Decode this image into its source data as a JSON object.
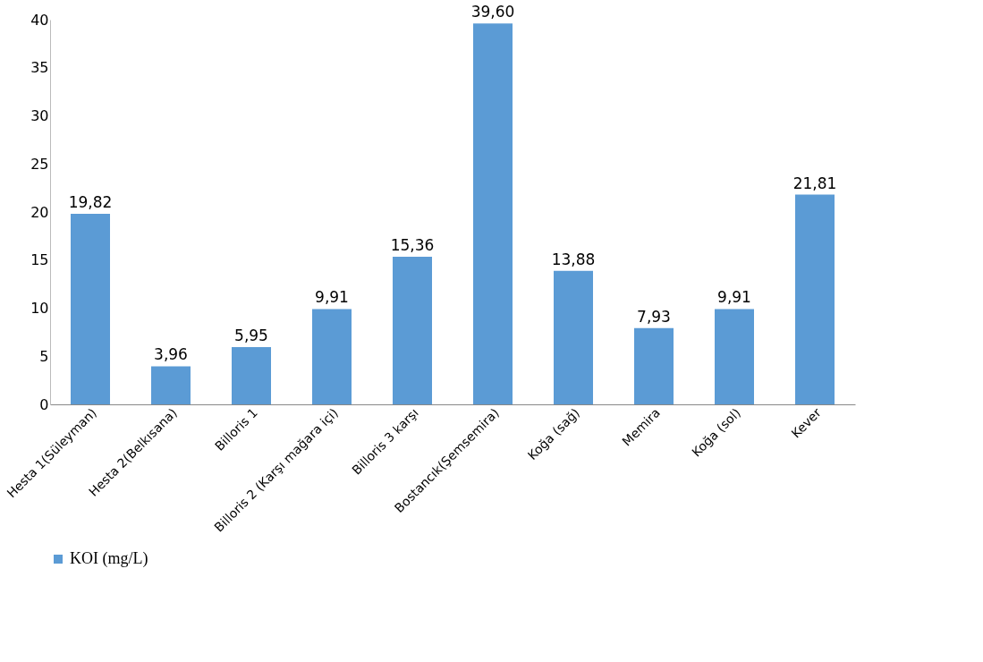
{
  "chart_data": {
    "type": "bar",
    "categories": [
      "Hesta 1(Süleyman)",
      "Hesta 2(Belkısana)",
      "Billoris 1",
      "Billoris 2 (Karşı mağara içi)",
      "Billoris 3 karşı",
      "Bostancık(Şemsemira)",
      "Koğa (sağ)",
      "Memira",
      "Koğa  (sol)",
      "Kever"
    ],
    "series": [
      {
        "name": "KOI (mg/L)",
        "color": "#5b9bd5",
        "values": [
          19.82,
          3.96,
          5.95,
          9.91,
          15.36,
          39.6,
          13.88,
          7.93,
          9.91,
          21.81
        ],
        "value_labels": [
          "19,82",
          "3,96",
          "5,95",
          "9,91",
          "15,36",
          "39,60",
          "13,88",
          "7,93",
          "9,91",
          "21,81"
        ]
      }
    ],
    "ylim": [
      0,
      40
    ],
    "yticks": [
      0,
      5,
      10,
      15,
      20,
      25,
      30,
      35,
      40
    ],
    "grid": false,
    "legend": "bottom"
  }
}
